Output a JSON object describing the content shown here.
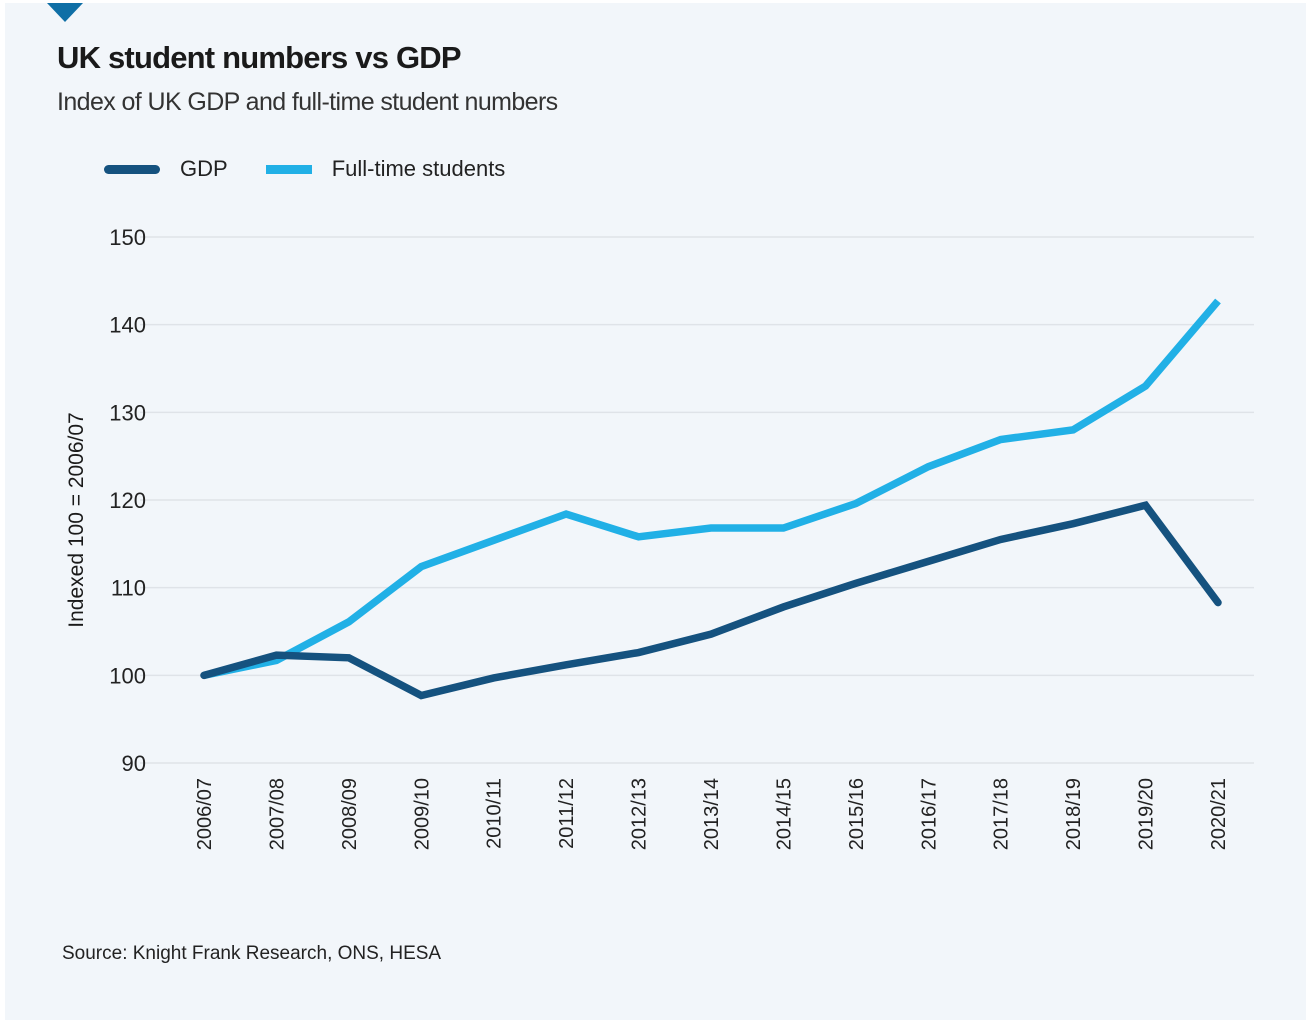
{
  "header": {
    "title": "UK student numbers vs GDP",
    "subtitle": "Index of UK GDP and full-time student numbers"
  },
  "legend": [
    {
      "label": "GDP",
      "color": "#15527f"
    },
    {
      "label": "Full-time students",
      "color": "#21b0e6"
    }
  ],
  "footer": {
    "source": "Source: Knight Frank Research, ONS, HESA"
  },
  "colors": {
    "background": "#f2f6fa",
    "accent_marker": "#0f6fa6",
    "gridline": "#dfe3e8"
  },
  "chart_data": {
    "type": "line",
    "title": "UK student numbers vs GDP",
    "subtitle": "Index of UK GDP and full-time student numbers",
    "xlabel": "",
    "ylabel": "Indexed 100 = 2006/07",
    "ylim": [
      90,
      150
    ],
    "yticks": [
      90,
      100,
      110,
      120,
      130,
      140,
      150
    ],
    "grid": true,
    "legend_position": "top-left",
    "categories": [
      "2006/07",
      "2007/08",
      "2008/09",
      "2009/10",
      "2010/11",
      "2011/12",
      "2012/13",
      "2013/14",
      "2014/15",
      "2015/16",
      "2016/17",
      "2017/18",
      "2018/19",
      "2019/20",
      "2020/21"
    ],
    "series": [
      {
        "name": "GDP",
        "color": "#15527f",
        "values": [
          100,
          102.3,
          102.0,
          97.7,
          99.7,
          101.2,
          102.6,
          104.7,
          107.8,
          110.5,
          113.0,
          115.5,
          117.3,
          119.4,
          108.3
        ]
      },
      {
        "name": "Full-time students",
        "color": "#21b0e6",
        "values": [
          100,
          101.7,
          106.1,
          112.4,
          115.4,
          118.4,
          115.8,
          116.8,
          116.8,
          119.6,
          123.8,
          126.9,
          128.0,
          133.0,
          142.7
        ]
      }
    ],
    "source": "Source: Knight Frank Research, ONS, HESA"
  }
}
